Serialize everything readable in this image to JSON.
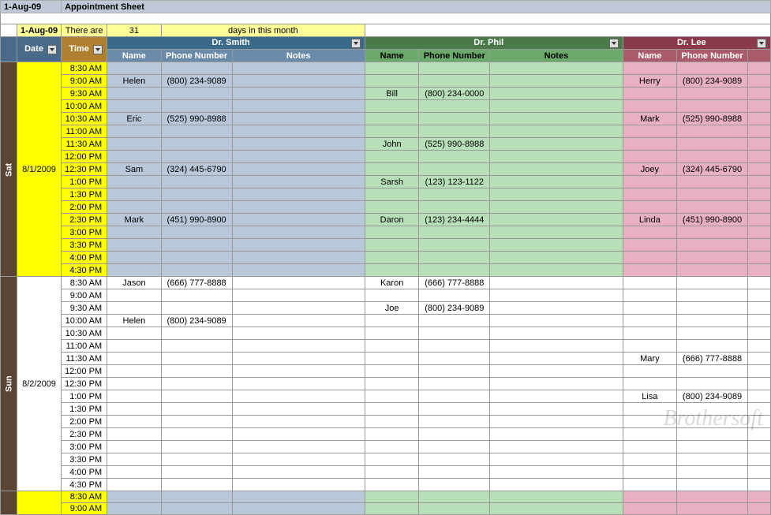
{
  "colors": {
    "title_bg": "#c0c8d8",
    "info_bg": "#ffff99",
    "date_hdr": "#4a6a8a",
    "time_hdr": "#b08030",
    "doc1_hdr": "#3a6a8a",
    "doc2_hdr": "#4a7a4a",
    "doc3_hdr": "#8a3a4a",
    "doc1_sub": "#6a8aaa",
    "doc2_sub": "#6aaa6a",
    "doc3_sub": "#aa5a6a",
    "day_bg": "#5a4535",
    "sat_bg": "#ffff00",
    "doc1_sat": "#b8c8d8",
    "doc2_sat": "#b8e0b8",
    "doc3_sat": "#e8b0c0"
  },
  "title": {
    "date": "1-Aug-09",
    "text": "Appointment Sheet"
  },
  "info": {
    "date": "1-Aug-09",
    "label1": "There are",
    "days": "31",
    "label2": "days in this month"
  },
  "headers": {
    "date": "Date",
    "time": "Time",
    "doc1": "Dr. Smith",
    "doc2": "Dr. Phil",
    "doc3": "Dr. Lee",
    "name": "Name",
    "phone": "Phone Number",
    "notes": "Notes"
  },
  "days": [
    {
      "day": "Sat",
      "date": "8/1/2009",
      "style": "sat",
      "slots": [
        {
          "t": "8:30 AM",
          "d1n": "",
          "d1p": "",
          "d2n": "",
          "d2p": "",
          "d3n": "",
          "d3p": ""
        },
        {
          "t": "9:00 AM",
          "d1n": "Helen",
          "d1p": "(800) 234-9089",
          "d2n": "",
          "d2p": "",
          "d3n": "Herry",
          "d3p": "(800) 234-9089"
        },
        {
          "t": "9:30 AM",
          "d1n": "",
          "d1p": "",
          "d2n": "Bill",
          "d2p": "(800) 234-0000",
          "d3n": "",
          "d3p": ""
        },
        {
          "t": "10:00 AM",
          "d1n": "",
          "d1p": "",
          "d2n": "",
          "d2p": "",
          "d3n": "",
          "d3p": ""
        },
        {
          "t": "10:30 AM",
          "d1n": "Eric",
          "d1p": "(525) 990-8988",
          "d2n": "",
          "d2p": "",
          "d3n": "Mark",
          "d3p": "(525) 990-8988"
        },
        {
          "t": "11:00 AM",
          "d1n": "",
          "d1p": "",
          "d2n": "",
          "d2p": "",
          "d3n": "",
          "d3p": ""
        },
        {
          "t": "11:30 AM",
          "d1n": "",
          "d1p": "",
          "d2n": "John",
          "d2p": "(525) 990-8988",
          "d3n": "",
          "d3p": ""
        },
        {
          "t": "12:00 PM",
          "d1n": "",
          "d1p": "",
          "d2n": "",
          "d2p": "",
          "d3n": "",
          "d3p": ""
        },
        {
          "t": "12:30 PM",
          "d1n": "Sam",
          "d1p": "(324) 445-6790",
          "d2n": "",
          "d2p": "",
          "d3n": "Joey",
          "d3p": "(324) 445-6790"
        },
        {
          "t": "1:00 PM",
          "d1n": "",
          "d1p": "",
          "d2n": "Sarsh",
          "d2p": "(123) 123-1122",
          "d3n": "",
          "d3p": ""
        },
        {
          "t": "1:30 PM",
          "d1n": "",
          "d1p": "",
          "d2n": "",
          "d2p": "",
          "d3n": "",
          "d3p": ""
        },
        {
          "t": "2:00 PM",
          "d1n": "",
          "d1p": "",
          "d2n": "",
          "d2p": "",
          "d3n": "",
          "d3p": ""
        },
        {
          "t": "2:30 PM",
          "d1n": "Mark",
          "d1p": "(451) 990-8900",
          "d2n": "Daron",
          "d2p": "(123) 234-4444",
          "d3n": "Linda",
          "d3p": "(451) 990-8900"
        },
        {
          "t": "3:00 PM",
          "d1n": "",
          "d1p": "",
          "d2n": "",
          "d2p": "",
          "d3n": "",
          "d3p": ""
        },
        {
          "t": "3:30 PM",
          "d1n": "",
          "d1p": "",
          "d2n": "",
          "d2p": "",
          "d3n": "",
          "d3p": ""
        },
        {
          "t": "4:00 PM",
          "d1n": "",
          "d1p": "",
          "d2n": "",
          "d2p": "",
          "d3n": "",
          "d3p": ""
        },
        {
          "t": "4:30 PM",
          "d1n": "",
          "d1p": "",
          "d2n": "",
          "d2p": "",
          "d3n": "",
          "d3p": ""
        }
      ]
    },
    {
      "day": "Sun",
      "date": "8/2/2009",
      "style": "sun",
      "slots": [
        {
          "t": "8:30 AM",
          "d1n": "Jason",
          "d1p": "(666) 777-8888",
          "d2n": "Karon",
          "d2p": "(666) 777-8888",
          "d3n": "",
          "d3p": ""
        },
        {
          "t": "9:00 AM",
          "d1n": "",
          "d1p": "",
          "d2n": "",
          "d2p": "",
          "d3n": "",
          "d3p": ""
        },
        {
          "t": "9:30 AM",
          "d1n": "",
          "d1p": "",
          "d2n": "Joe",
          "d2p": "(800) 234-9089",
          "d3n": "",
          "d3p": ""
        },
        {
          "t": "10:00 AM",
          "d1n": "Helen",
          "d1p": "(800) 234-9089",
          "d2n": "",
          "d2p": "",
          "d3n": "",
          "d3p": ""
        },
        {
          "t": "10:30 AM",
          "d1n": "",
          "d1p": "",
          "d2n": "",
          "d2p": "",
          "d3n": "",
          "d3p": ""
        },
        {
          "t": "11:00 AM",
          "d1n": "",
          "d1p": "",
          "d2n": "",
          "d2p": "",
          "d3n": "",
          "d3p": ""
        },
        {
          "t": "11:30 AM",
          "d1n": "",
          "d1p": "",
          "d2n": "",
          "d2p": "",
          "d3n": "Mary",
          "d3p": "(666) 777-8888"
        },
        {
          "t": "12:00 PM",
          "d1n": "",
          "d1p": "",
          "d2n": "",
          "d2p": "",
          "d3n": "",
          "d3p": ""
        },
        {
          "t": "12:30 PM",
          "d1n": "",
          "d1p": "",
          "d2n": "",
          "d2p": "",
          "d3n": "",
          "d3p": ""
        },
        {
          "t": "1:00 PM",
          "d1n": "",
          "d1p": "",
          "d2n": "",
          "d2p": "",
          "d3n": "Lisa",
          "d3p": "(800) 234-9089"
        },
        {
          "t": "1:30 PM",
          "d1n": "",
          "d1p": "",
          "d2n": "",
          "d2p": "",
          "d3n": "",
          "d3p": ""
        },
        {
          "t": "2:00 PM",
          "d1n": "",
          "d1p": "",
          "d2n": "",
          "d2p": "",
          "d3n": "",
          "d3p": ""
        },
        {
          "t": "2:30 PM",
          "d1n": "",
          "d1p": "",
          "d2n": "",
          "d2p": "",
          "d3n": "",
          "d3p": ""
        },
        {
          "t": "3:00 PM",
          "d1n": "",
          "d1p": "",
          "d2n": "",
          "d2p": "",
          "d3n": "",
          "d3p": ""
        },
        {
          "t": "3:30 PM",
          "d1n": "",
          "d1p": "",
          "d2n": "",
          "d2p": "",
          "d3n": "",
          "d3p": ""
        },
        {
          "t": "4:00 PM",
          "d1n": "",
          "d1p": "",
          "d2n": "",
          "d2p": "",
          "d3n": "",
          "d3p": ""
        },
        {
          "t": "4:30 PM",
          "d1n": "",
          "d1p": "",
          "d2n": "",
          "d2p": "",
          "d3n": "",
          "d3p": ""
        }
      ]
    }
  ],
  "trailing": [
    "8:30 AM",
    "9:00 AM"
  ],
  "watermark": "Brothersoft"
}
